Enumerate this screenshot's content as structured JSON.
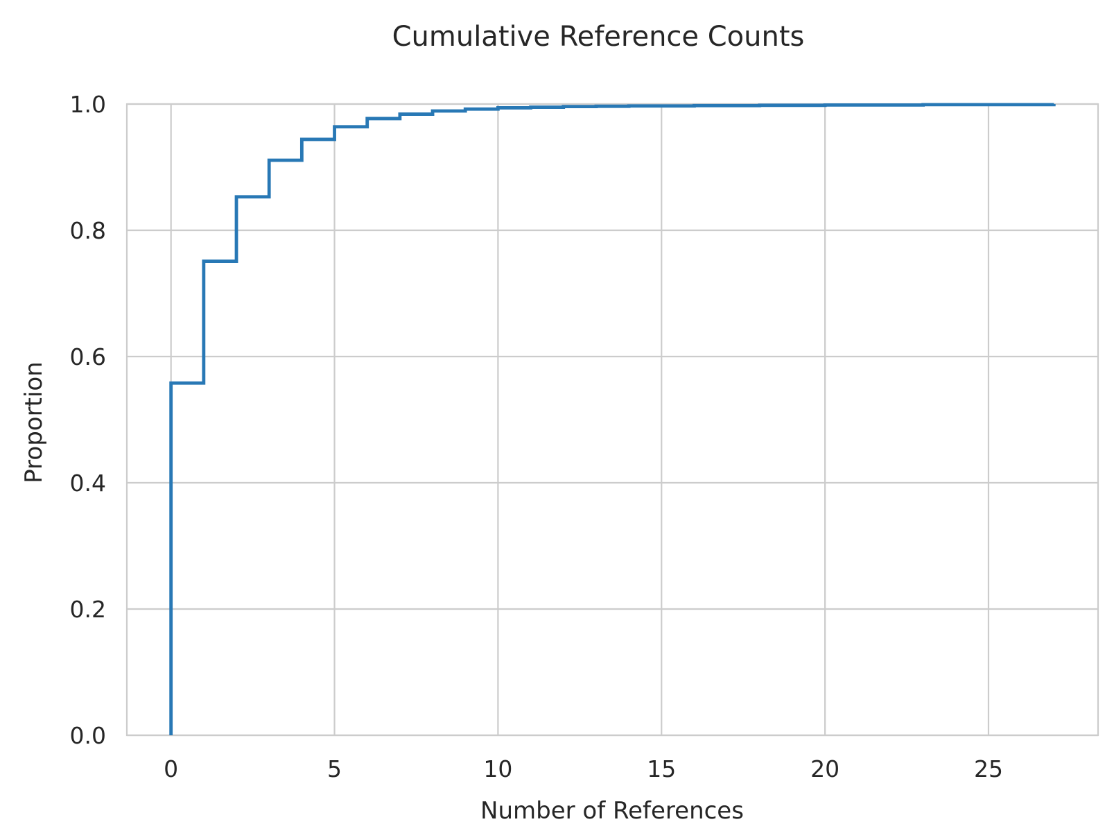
{
  "chart_data": {
    "type": "line",
    "step": "post",
    "title": "Cumulative Reference Counts",
    "xlabel": "Number of References",
    "ylabel": "Proportion",
    "xlim": [
      -1.35,
      28.35
    ],
    "ylim": [
      0,
      1.0
    ],
    "xticks": [
      0,
      5,
      10,
      15,
      20,
      25
    ],
    "xtick_labels": [
      "0",
      "5",
      "10",
      "15",
      "20",
      "25"
    ],
    "yticks": [
      0.0,
      0.2,
      0.4,
      0.6,
      0.8,
      1.0
    ],
    "ytick_labels": [
      "0.0",
      "0.2",
      "0.4",
      "0.6",
      "0.8",
      "1.0"
    ],
    "grid": true,
    "series": [
      {
        "color": "#2878b5",
        "points": [
          {
            "x": 0,
            "y": 0.0
          },
          {
            "x": 0,
            "y": 0.558
          },
          {
            "x": 1,
            "y": 0.751
          },
          {
            "x": 2,
            "y": 0.853
          },
          {
            "x": 3,
            "y": 0.911
          },
          {
            "x": 4,
            "y": 0.944
          },
          {
            "x": 5,
            "y": 0.964
          },
          {
            "x": 6,
            "y": 0.977
          },
          {
            "x": 7,
            "y": 0.984
          },
          {
            "x": 8,
            "y": 0.989
          },
          {
            "x": 9,
            "y": 0.992
          },
          {
            "x": 10,
            "y": 0.994
          },
          {
            "x": 11,
            "y": 0.995
          },
          {
            "x": 12,
            "y": 0.996
          },
          {
            "x": 13,
            "y": 0.9965
          },
          {
            "x": 14,
            "y": 0.997
          },
          {
            "x": 16,
            "y": 0.9975
          },
          {
            "x": 18,
            "y": 0.998
          },
          {
            "x": 20,
            "y": 0.9985
          },
          {
            "x": 23,
            "y": 0.999
          },
          {
            "x": 27,
            "y": 1.0
          }
        ]
      }
    ]
  }
}
